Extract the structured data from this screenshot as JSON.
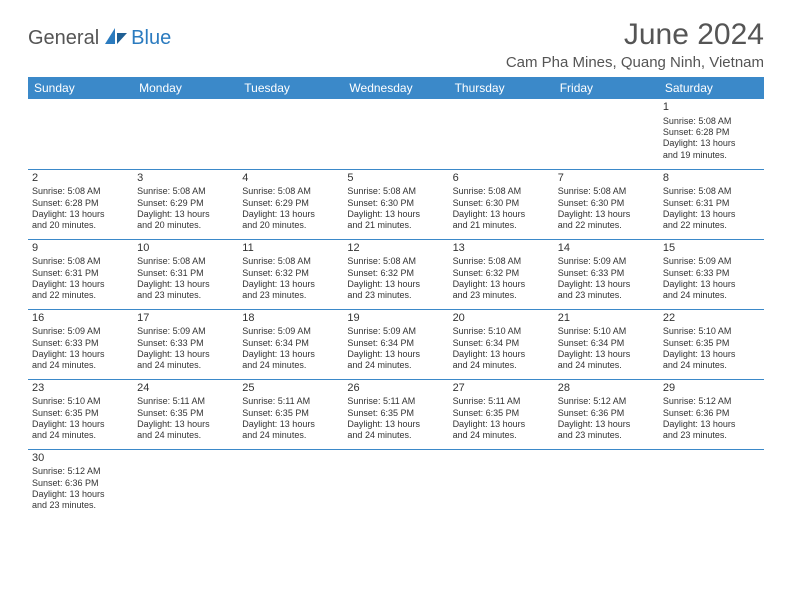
{
  "logo": {
    "general": "General",
    "blue": "Blue"
  },
  "title": "June 2024",
  "location": "Cam Pha Mines, Quang Ninh, Vietnam",
  "day_headers": [
    "Sunday",
    "Monday",
    "Tuesday",
    "Wednesday",
    "Thursday",
    "Friday",
    "Saturday"
  ],
  "colors": {
    "header_bg": "#3b89c9",
    "header_text": "#ffffff",
    "border": "#3b89c9",
    "text": "#333333",
    "logo_gray": "#555555",
    "logo_blue": "#2b7bbf"
  },
  "weeks": [
    [
      null,
      null,
      null,
      null,
      null,
      null,
      {
        "n": "1",
        "sr": "Sunrise: 5:08 AM",
        "ss": "Sunset: 6:28 PM",
        "d1": "Daylight: 13 hours",
        "d2": "and 19 minutes."
      }
    ],
    [
      {
        "n": "2",
        "sr": "Sunrise: 5:08 AM",
        "ss": "Sunset: 6:28 PM",
        "d1": "Daylight: 13 hours",
        "d2": "and 20 minutes."
      },
      {
        "n": "3",
        "sr": "Sunrise: 5:08 AM",
        "ss": "Sunset: 6:29 PM",
        "d1": "Daylight: 13 hours",
        "d2": "and 20 minutes."
      },
      {
        "n": "4",
        "sr": "Sunrise: 5:08 AM",
        "ss": "Sunset: 6:29 PM",
        "d1": "Daylight: 13 hours",
        "d2": "and 20 minutes."
      },
      {
        "n": "5",
        "sr": "Sunrise: 5:08 AM",
        "ss": "Sunset: 6:30 PM",
        "d1": "Daylight: 13 hours",
        "d2": "and 21 minutes."
      },
      {
        "n": "6",
        "sr": "Sunrise: 5:08 AM",
        "ss": "Sunset: 6:30 PM",
        "d1": "Daylight: 13 hours",
        "d2": "and 21 minutes."
      },
      {
        "n": "7",
        "sr": "Sunrise: 5:08 AM",
        "ss": "Sunset: 6:30 PM",
        "d1": "Daylight: 13 hours",
        "d2": "and 22 minutes."
      },
      {
        "n": "8",
        "sr": "Sunrise: 5:08 AM",
        "ss": "Sunset: 6:31 PM",
        "d1": "Daylight: 13 hours",
        "d2": "and 22 minutes."
      }
    ],
    [
      {
        "n": "9",
        "sr": "Sunrise: 5:08 AM",
        "ss": "Sunset: 6:31 PM",
        "d1": "Daylight: 13 hours",
        "d2": "and 22 minutes."
      },
      {
        "n": "10",
        "sr": "Sunrise: 5:08 AM",
        "ss": "Sunset: 6:31 PM",
        "d1": "Daylight: 13 hours",
        "d2": "and 23 minutes."
      },
      {
        "n": "11",
        "sr": "Sunrise: 5:08 AM",
        "ss": "Sunset: 6:32 PM",
        "d1": "Daylight: 13 hours",
        "d2": "and 23 minutes."
      },
      {
        "n": "12",
        "sr": "Sunrise: 5:08 AM",
        "ss": "Sunset: 6:32 PM",
        "d1": "Daylight: 13 hours",
        "d2": "and 23 minutes."
      },
      {
        "n": "13",
        "sr": "Sunrise: 5:08 AM",
        "ss": "Sunset: 6:32 PM",
        "d1": "Daylight: 13 hours",
        "d2": "and 23 minutes."
      },
      {
        "n": "14",
        "sr": "Sunrise: 5:09 AM",
        "ss": "Sunset: 6:33 PM",
        "d1": "Daylight: 13 hours",
        "d2": "and 23 minutes."
      },
      {
        "n": "15",
        "sr": "Sunrise: 5:09 AM",
        "ss": "Sunset: 6:33 PM",
        "d1": "Daylight: 13 hours",
        "d2": "and 24 minutes."
      }
    ],
    [
      {
        "n": "16",
        "sr": "Sunrise: 5:09 AM",
        "ss": "Sunset: 6:33 PM",
        "d1": "Daylight: 13 hours",
        "d2": "and 24 minutes."
      },
      {
        "n": "17",
        "sr": "Sunrise: 5:09 AM",
        "ss": "Sunset: 6:33 PM",
        "d1": "Daylight: 13 hours",
        "d2": "and 24 minutes."
      },
      {
        "n": "18",
        "sr": "Sunrise: 5:09 AM",
        "ss": "Sunset: 6:34 PM",
        "d1": "Daylight: 13 hours",
        "d2": "and 24 minutes."
      },
      {
        "n": "19",
        "sr": "Sunrise: 5:09 AM",
        "ss": "Sunset: 6:34 PM",
        "d1": "Daylight: 13 hours",
        "d2": "and 24 minutes."
      },
      {
        "n": "20",
        "sr": "Sunrise: 5:10 AM",
        "ss": "Sunset: 6:34 PM",
        "d1": "Daylight: 13 hours",
        "d2": "and 24 minutes."
      },
      {
        "n": "21",
        "sr": "Sunrise: 5:10 AM",
        "ss": "Sunset: 6:34 PM",
        "d1": "Daylight: 13 hours",
        "d2": "and 24 minutes."
      },
      {
        "n": "22",
        "sr": "Sunrise: 5:10 AM",
        "ss": "Sunset: 6:35 PM",
        "d1": "Daylight: 13 hours",
        "d2": "and 24 minutes."
      }
    ],
    [
      {
        "n": "23",
        "sr": "Sunrise: 5:10 AM",
        "ss": "Sunset: 6:35 PM",
        "d1": "Daylight: 13 hours",
        "d2": "and 24 minutes."
      },
      {
        "n": "24",
        "sr": "Sunrise: 5:11 AM",
        "ss": "Sunset: 6:35 PM",
        "d1": "Daylight: 13 hours",
        "d2": "and 24 minutes."
      },
      {
        "n": "25",
        "sr": "Sunrise: 5:11 AM",
        "ss": "Sunset: 6:35 PM",
        "d1": "Daylight: 13 hours",
        "d2": "and 24 minutes."
      },
      {
        "n": "26",
        "sr": "Sunrise: 5:11 AM",
        "ss": "Sunset: 6:35 PM",
        "d1": "Daylight: 13 hours",
        "d2": "and 24 minutes."
      },
      {
        "n": "27",
        "sr": "Sunrise: 5:11 AM",
        "ss": "Sunset: 6:35 PM",
        "d1": "Daylight: 13 hours",
        "d2": "and 24 minutes."
      },
      {
        "n": "28",
        "sr": "Sunrise: 5:12 AM",
        "ss": "Sunset: 6:36 PM",
        "d1": "Daylight: 13 hours",
        "d2": "and 23 minutes."
      },
      {
        "n": "29",
        "sr": "Sunrise: 5:12 AM",
        "ss": "Sunset: 6:36 PM",
        "d1": "Daylight: 13 hours",
        "d2": "and 23 minutes."
      }
    ],
    [
      {
        "n": "30",
        "sr": "Sunrise: 5:12 AM",
        "ss": "Sunset: 6:36 PM",
        "d1": "Daylight: 13 hours",
        "d2": "and 23 minutes."
      },
      null,
      null,
      null,
      null,
      null,
      null
    ]
  ]
}
